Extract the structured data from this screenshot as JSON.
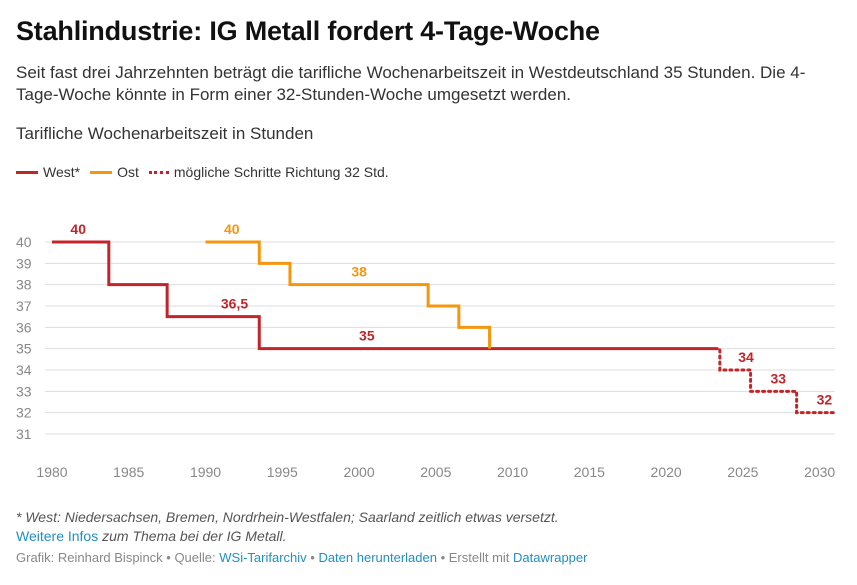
{
  "header": {
    "title": "Stahlindustrie: IG Metall fordert 4-Tage-Woche",
    "subtitle": "Seit fast drei Jahrzehnten beträgt die tarifliche Wochenarbeitszeit in Westdeutschland 35 Stunden. Die 4-Tage-Woche könnte in Form einer 32-Stunden-Woche umgesetzt werden."
  },
  "legend": {
    "west": "West*",
    "ost": "Ost",
    "possible": "mögliche Schritte Richtung 32 Std."
  },
  "colors": {
    "west": "#c3242a",
    "ost": "#f4960f",
    "grid": "#dddddd",
    "axis_text": "#888888",
    "link": "#1f8fc6"
  },
  "chart_data": {
    "type": "line",
    "title": "Tarifliche Wochenarbeitszeit in Stunden",
    "xlabel": "",
    "ylabel": "",
    "xlim": [
      1980,
      2031
    ],
    "ylim": [
      31,
      40
    ],
    "x_ticks": [
      1980,
      1985,
      1990,
      1995,
      2000,
      2005,
      2010,
      2015,
      2020,
      2025,
      2030
    ],
    "y_ticks": [
      31,
      32,
      33,
      34,
      35,
      36,
      37,
      38,
      39,
      40
    ],
    "grid": true,
    "step": true,
    "series": [
      {
        "name": "West*",
        "color": "#c3242a",
        "style": "solid",
        "x": [
          1980,
          1983.7,
          1987.5,
          1993.5,
          2023.2
        ],
        "y": [
          40,
          38,
          36.5,
          35,
          35
        ]
      },
      {
        "name": "Ost",
        "color": "#f4960f",
        "style": "solid",
        "x": [
          1990,
          1993.5,
          1995.5,
          2004.5,
          2006.5,
          2008.5
        ],
        "y": [
          40,
          39,
          38,
          37,
          36,
          35
        ]
      },
      {
        "name": "mögliche Schritte Richtung 32 Std.",
        "color": "#c3242a",
        "style": "dotted",
        "x": [
          2023.2,
          2023.5,
          2025.5,
          2028.5,
          2031
        ],
        "y": [
          35,
          34,
          33,
          32,
          32
        ]
      }
    ],
    "annotations": [
      {
        "text": "40",
        "x": 1981.2,
        "y": 40,
        "series": "West*"
      },
      {
        "text": "36,5",
        "x": 1991,
        "y": 36.5,
        "series": "West*"
      },
      {
        "text": "35",
        "x": 2000,
        "y": 35,
        "series": "West*"
      },
      {
        "text": "40",
        "x": 1991.2,
        "y": 40,
        "series": "Ost"
      },
      {
        "text": "38",
        "x": 1999.5,
        "y": 38,
        "series": "Ost"
      },
      {
        "text": "34",
        "x": 2024.7,
        "y": 34,
        "series": "mögliche Schritte Richtung 32 Std."
      },
      {
        "text": "33",
        "x": 2026.8,
        "y": 33,
        "series": "mögliche Schritte Richtung 32 Std."
      },
      {
        "text": "32",
        "x": 2029.8,
        "y": 32,
        "series": "mögliche Schritte Richtung 32 Std."
      }
    ]
  },
  "footer": {
    "footnote": "* West: Niedersachsen, Bremen, Nordrhein-Westfalen; Saarland zeitlich etwas versetzt.",
    "more_info_link": "Weitere Infos",
    "more_info_text": " zum Thema bei der IG Metall.",
    "grafik": "Grafik: Reinhard Bispinck • Quelle: ",
    "source_link": "WSi-Tarifarchiv",
    "sep1": " • ",
    "download_link": "Daten herunterladen",
    "sep2": " • Erstellt mit ",
    "datawrapper_link": "Datawrapper"
  }
}
